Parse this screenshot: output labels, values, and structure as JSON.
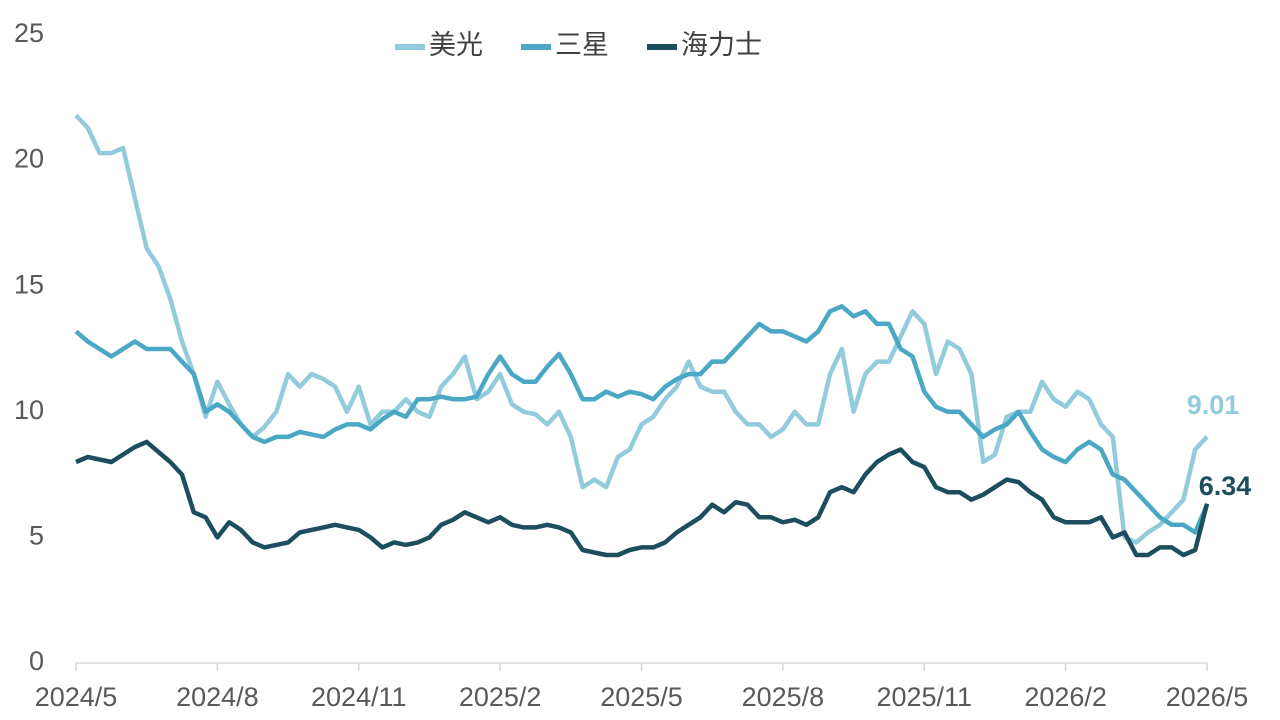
{
  "chart_data": {
    "type": "line",
    "categories": [
      "2024/5",
      null,
      null,
      null,
      null,
      null,
      null,
      null,
      null,
      null,
      null,
      null,
      "2024/8",
      null,
      null,
      null,
      null,
      null,
      null,
      null,
      null,
      null,
      null,
      null,
      "2024/11",
      null,
      null,
      null,
      null,
      null,
      null,
      null,
      null,
      null,
      null,
      null,
      "2025/2",
      null,
      null,
      null,
      null,
      null,
      null,
      null,
      null,
      null,
      null,
      null,
      "2025/5",
      null,
      null,
      null,
      null,
      null,
      null,
      null,
      null,
      null,
      null,
      null,
      "2025/8",
      null,
      null,
      null,
      null,
      null,
      null,
      null,
      null,
      null,
      null,
      null,
      "2025/11",
      null,
      null,
      null,
      null,
      null,
      null,
      null,
      null,
      null,
      null,
      null,
      "2026/2",
      null,
      null,
      null,
      null,
      null,
      null,
      null,
      null,
      null,
      null,
      null,
      "2026/5"
    ],
    "series": [
      {
        "name": "美光",
        "color": "#92cbdc",
        "end_label": true,
        "values": [
          21.8,
          21.3,
          20.3,
          20.3,
          20.5,
          18.5,
          16.5,
          15.8,
          14.5,
          12.8,
          11.5,
          9.8,
          11.2,
          10.3,
          9.5,
          9.0,
          9.4,
          10.0,
          11.5,
          11.0,
          11.5,
          11.3,
          11.0,
          10.0,
          11.0,
          9.5,
          10.0,
          10.0,
          10.5,
          10.0,
          9.8,
          11.0,
          11.5,
          12.2,
          10.5,
          10.8,
          11.5,
          10.3,
          10.0,
          9.9,
          9.5,
          10.0,
          9.0,
          7.0,
          7.3,
          7.0,
          8.2,
          8.5,
          9.5,
          9.8,
          10.5,
          11.0,
          12.0,
          11.0,
          10.8,
          10.8,
          10.0,
          9.5,
          9.5,
          9.0,
          9.3,
          10.0,
          9.5,
          9.5,
          11.5,
          12.5,
          10.0,
          11.5,
          12.0,
          12.0,
          13.0,
          14.0,
          13.5,
          11.5,
          12.8,
          12.5,
          11.5,
          8.0,
          8.3,
          9.8,
          10.0,
          10.0,
          11.2,
          10.5,
          10.2,
          10.8,
          10.5,
          9.5,
          9.0,
          5.0,
          4.8,
          5.2,
          5.5,
          6.0,
          6.5,
          8.5,
          9.01
        ]
      },
      {
        "name": "三星",
        "color": "#4aa8c4",
        "end_label": false,
        "values": [
          13.2,
          12.8,
          12.5,
          12.2,
          12.5,
          12.8,
          12.5,
          12.5,
          12.5,
          12.0,
          11.5,
          10.0,
          10.3,
          10.0,
          9.5,
          9.0,
          8.8,
          9.0,
          9.0,
          9.2,
          9.1,
          9.0,
          9.3,
          9.5,
          9.5,
          9.3,
          9.7,
          10.0,
          9.8,
          10.5,
          10.5,
          10.6,
          10.5,
          10.5,
          10.6,
          11.5,
          12.2,
          11.5,
          11.2,
          11.2,
          11.8,
          12.3,
          11.5,
          10.5,
          10.5,
          10.8,
          10.6,
          10.8,
          10.7,
          10.5,
          11.0,
          11.3,
          11.5,
          11.5,
          12.0,
          12.0,
          12.5,
          13.0,
          13.5,
          13.2,
          13.2,
          13.0,
          12.8,
          13.2,
          14.0,
          14.2,
          13.8,
          14.0,
          13.5,
          13.5,
          12.5,
          12.2,
          10.8,
          10.2,
          10.0,
          10.0,
          9.5,
          9.0,
          9.3,
          9.5,
          10.0,
          9.2,
          8.5,
          8.2,
          8.0,
          8.5,
          8.8,
          8.5,
          7.5,
          7.3,
          6.8,
          6.3,
          5.8,
          5.5,
          5.5,
          5.2,
          6.3
        ]
      },
      {
        "name": "海力士",
        "color": "#1d4e5e",
        "end_label": true,
        "values": [
          8.0,
          8.2,
          8.1,
          8.0,
          8.3,
          8.6,
          8.8,
          8.4,
          8.0,
          7.5,
          6.0,
          5.8,
          5.0,
          5.6,
          5.3,
          4.8,
          4.6,
          4.7,
          4.8,
          5.2,
          5.3,
          5.4,
          5.5,
          5.4,
          5.3,
          5.0,
          4.6,
          4.8,
          4.7,
          4.8,
          5.0,
          5.5,
          5.7,
          6.0,
          5.8,
          5.6,
          5.8,
          5.5,
          5.4,
          5.4,
          5.5,
          5.4,
          5.2,
          4.5,
          4.4,
          4.3,
          4.3,
          4.5,
          4.6,
          4.6,
          4.8,
          5.2,
          5.5,
          5.8,
          6.3,
          6.0,
          6.4,
          6.3,
          5.8,
          5.8,
          5.6,
          5.7,
          5.5,
          5.8,
          6.8,
          7.0,
          6.8,
          7.5,
          8.0,
          8.3,
          8.5,
          8.0,
          7.8,
          7.0,
          6.8,
          6.8,
          6.5,
          6.7,
          7.0,
          7.3,
          7.2,
          6.8,
          6.5,
          5.8,
          5.6,
          5.6,
          5.6,
          5.8,
          5.0,
          5.2,
          4.3,
          4.3,
          4.6,
          4.6,
          4.3,
          4.5,
          6.34
        ]
      }
    ],
    "ylim": [
      0,
      25
    ],
    "yticks": [
      0,
      5,
      10,
      15,
      20,
      25
    ],
    "grid": false,
    "legend": "top"
  }
}
